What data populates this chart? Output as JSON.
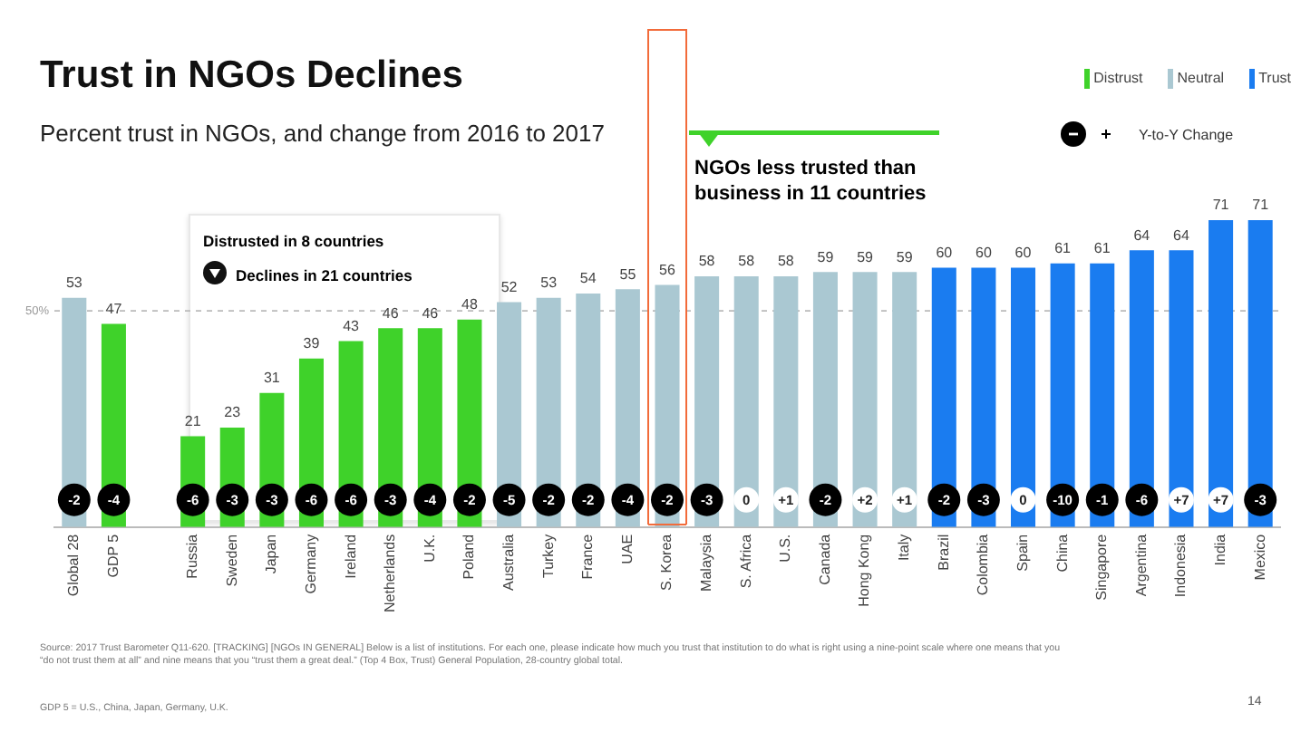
{
  "chart_data": {
    "type": "bar",
    "title": "Trust in NGOs Declines",
    "subtitle": "Percent trust in NGOs, and change from 2016 to 2017",
    "categories": [
      "Global 28",
      "GDP 5",
      null,
      "Russia",
      "Sweden",
      "Japan",
      "Germany",
      "Ireland",
      "Netherlands",
      "U.K.",
      "Poland",
      "Australia",
      "Turkey",
      "France",
      "UAE",
      "S. Korea",
      "Malaysia",
      "S. Africa",
      "U.S.",
      "Canada",
      "Hong Kong",
      "Italy",
      "Brazil",
      "Colombia",
      "Spain",
      "China",
      "Singapore",
      "Argentina",
      "Indonesia",
      "India",
      "Mexico"
    ],
    "series": [
      {
        "name": "Distrust",
        "color": "#3fd22a",
        "values": [
          null,
          47,
          null,
          21,
          23,
          31,
          39,
          43,
          46,
          46,
          48,
          null,
          null,
          null,
          null,
          null,
          null,
          null,
          null,
          null,
          null,
          null,
          null,
          null,
          null,
          null,
          null,
          null,
          null,
          null,
          null
        ]
      },
      {
        "name": "Neutral",
        "color": "#aac8d2",
        "values": [
          53,
          null,
          null,
          null,
          null,
          null,
          null,
          null,
          null,
          null,
          null,
          52,
          53,
          54,
          55,
          56,
          58,
          58,
          58,
          59,
          59,
          59,
          null,
          null,
          null,
          null,
          null,
          null,
          null,
          null,
          null
        ]
      },
      {
        "name": "Trust",
        "color": "#1a7cf0",
        "values": [
          null,
          null,
          null,
          null,
          null,
          null,
          null,
          null,
          null,
          null,
          null,
          null,
          null,
          null,
          null,
          null,
          null,
          null,
          null,
          null,
          null,
          null,
          60,
          60,
          60,
          61,
          61,
          64,
          64,
          71,
          71
        ]
      }
    ],
    "stacked": true,
    "data_labels": true,
    "legend": "top right",
    "grid": false,
    "ref_lines": [
      {
        "axis": "y",
        "value": 50,
        "label": "50%",
        "line_style": "dashed",
        "color": "#bbbbbb"
      }
    ],
    "annotations": [
      "Distrusted in 8 countries",
      "Declines in 21 countries",
      "NGOs less trusted than business in 11 countries",
      "Y-to-Y Change",
      "Source: 2017 Trust Barometer Q11-620. [TRACKING] [NGOs IN GENERAL] Below is a list of institutions. For each one, please indicate how much you trust that institution to do what is right using a nine-point scale where one means that you “do not trust them at all” and nine means that you “trust them a great deal.” (Top 4 Box, Trust) General Population, 28-country global total.",
      "GDP 5 = U.S., China, Japan, Germany, U.K.",
      "14",
      {
        "text": "-2",
        "x": "Global 28"
      },
      {
        "text": "-4",
        "x": "GDP 5"
      },
      {
        "text": "-6",
        "x": "Russia"
      },
      {
        "text": "-3",
        "x": "Sweden"
      },
      {
        "text": "-3",
        "x": "Japan"
      },
      {
        "text": "-6",
        "x": "Germany"
      },
      {
        "text": "-6",
        "x": "Ireland"
      },
      {
        "text": "-3",
        "x": "Netherlands"
      },
      {
        "text": "-4",
        "x": "U.K."
      },
      {
        "text": "-2",
        "x": "Poland"
      },
      {
        "text": "-5",
        "x": "Australia"
      },
      {
        "text": "-2",
        "x": "Turkey"
      },
      {
        "text": "-2",
        "x": "France"
      },
      {
        "text": "-4",
        "x": "UAE"
      },
      {
        "text": "-2",
        "x": "S. Korea"
      },
      {
        "text": "-3",
        "x": "Malaysia"
      },
      {
        "text": "0",
        "x": "S. Africa"
      },
      {
        "text": "+1",
        "x": "U.S."
      },
      {
        "text": "-2",
        "x": "Canada"
      },
      {
        "text": "+2",
        "x": "Hong Kong"
      },
      {
        "text": "+1",
        "x": "Italy"
      },
      {
        "text": "-2",
        "x": "Brazil"
      },
      {
        "text": "-3",
        "x": "Colombia"
      },
      {
        "text": "0",
        "x": "Spain"
      },
      {
        "text": "-10",
        "x": "China"
      },
      {
        "text": "-1",
        "x": "Singapore"
      },
      {
        "text": "-6",
        "x": "Argentina"
      },
      {
        "text": "+7",
        "x": "Indonesia"
      },
      {
        "text": "+7",
        "x": "India"
      },
      {
        "text": "-3",
        "x": "Mexico"
      }
    ]
  }
}
